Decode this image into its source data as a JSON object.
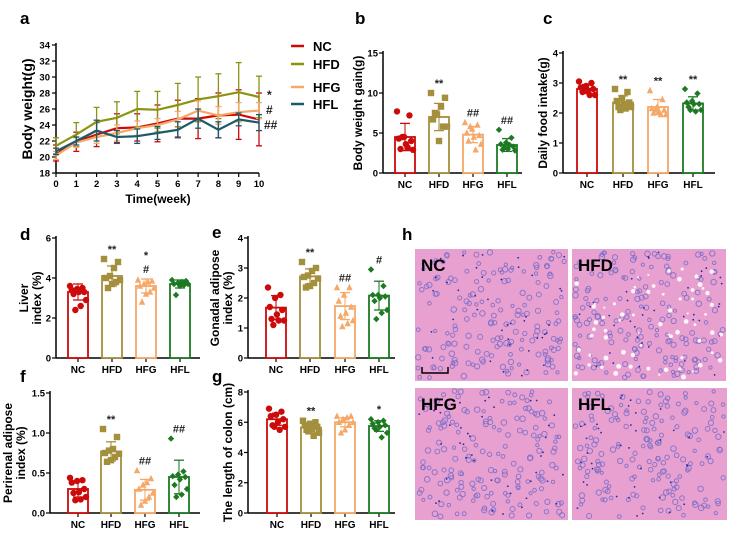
{
  "colors": {
    "NC": "#cc0a0a",
    "HFD_line": "#8a9412",
    "HFD_bar": "#a38f3c",
    "HFG": "#f5a868",
    "HFL_line": "#1c5a6a",
    "HFL_bar": "#1d7a22"
  },
  "panels": {
    "a": "a",
    "b": "b",
    "c": "c",
    "d": "d",
    "e": "e",
    "f": "f",
    "g": "g",
    "h": "h"
  },
  "chart_data": [
    {
      "id": "a",
      "type": "line",
      "xlabel": "Time(week)",
      "ylabel": "Body weight(g)",
      "x": [
        0,
        1,
        2,
        3,
        4,
        5,
        6,
        7,
        8,
        9,
        10
      ],
      "xticks": [
        "0",
        "1",
        "2",
        "3",
        "4",
        "5",
        "6",
        "7",
        "8",
        "9",
        "10"
      ],
      "ylim": [
        18,
        34
      ],
      "yticks": [
        "18",
        "20",
        "22",
        "24",
        "26",
        "28",
        "30",
        "32",
        "34"
      ],
      "legend": "right",
      "series": [
        {
          "name": "NC",
          "color": "#cc0a0a",
          "values": [
            20.5,
            21.9,
            22.8,
            23.6,
            23.7,
            24.2,
            24.8,
            24.8,
            25.2,
            25.3,
            24.7
          ],
          "sd": [
            1.0,
            1.2,
            1.5,
            1.8,
            1.7,
            2.3,
            2.3,
            2.5,
            2.8,
            3.1,
            3.3
          ]
        },
        {
          "name": "HFD",
          "color": "#8a9412",
          "values": [
            21.4,
            22.8,
            24.4,
            24.9,
            26.0,
            25.9,
            26.5,
            27.2,
            27.6,
            28.1,
            27.5
          ],
          "sd": [
            1.0,
            1.5,
            1.8,
            2.0,
            2.2,
            2.3,
            2.7,
            2.8,
            2.8,
            3.7,
            2.6
          ]
        },
        {
          "name": "HFG",
          "color": "#f5a868",
          "values": [
            20.2,
            21.8,
            22.5,
            23.0,
            23.6,
            24.0,
            24.7,
            25.8,
            25.2,
            25.6,
            25.8
          ],
          "sd": [
            0.5,
            0.6,
            0.8,
            1.0,
            0.9,
            0.8,
            1.0,
            1.2,
            1.1,
            1.2,
            1.0
          ]
        },
        {
          "name": "HFL",
          "color": "#1c5a6a",
          "values": [
            20.7,
            22.0,
            23.3,
            22.5,
            22.6,
            23.0,
            23.4,
            24.8,
            23.4,
            24.7,
            24.3
          ],
          "sd": [
            0.4,
            0.5,
            1.3,
            0.8,
            0.9,
            0.8,
            1.0,
            1.2,
            1.0,
            0.8,
            1.0
          ]
        }
      ],
      "annotations": [
        "*",
        "#",
        "##"
      ]
    },
    {
      "id": "b",
      "type": "bar",
      "ylabel": [
        "Body weight gain(g)"
      ],
      "categories": [
        "NC",
        "HFD",
        "HFG",
        "HFL"
      ],
      "ylim": [
        0,
        15
      ],
      "yticks": [
        "0",
        "5",
        "10",
        "15"
      ],
      "means": [
        4.5,
        7.0,
        4.8,
        3.5
      ],
      "sd": [
        1.7,
        1.7,
        1.0,
        0.8
      ],
      "points": [
        [
          7.7,
          7.2,
          4.5,
          4.3,
          4.0,
          3.6,
          3.0,
          2.9,
          3.2,
          4.5
        ],
        [
          10,
          9.4,
          8.3,
          7.3,
          6.7,
          5.8,
          5.8,
          4.0,
          7.5
        ],
        [
          6.3,
          6.0,
          5.5,
          5.0,
          4.7,
          4.5,
          4.0,
          3.6,
          2.9,
          5.8
        ],
        [
          5.4,
          4.4,
          3.8,
          3.6,
          3.3,
          3.0,
          2.9,
          2.8,
          3.5,
          3.2
        ]
      ],
      "annotations": [
        "",
        "**",
        "##",
        "##"
      ]
    },
    {
      "id": "c",
      "type": "bar",
      "ylabel": [
        "Daily food intake(g)"
      ],
      "categories": [
        "NC",
        "HFD",
        "HFG",
        "HFL"
      ],
      "ylim": [
        0,
        4
      ],
      "yticks": [
        "0",
        "1",
        "2",
        "3",
        "4"
      ],
      "means": [
        2.8,
        2.35,
        2.2,
        2.32
      ],
      "sd": [
        0.15,
        0.22,
        0.25,
        0.22
      ],
      "points": [
        [
          3.05,
          3.0,
          2.9,
          2.85,
          2.8,
          2.75,
          2.7,
          2.6,
          2.6,
          2.85
        ],
        [
          2.8,
          2.7,
          2.5,
          2.4,
          2.35,
          2.3,
          2.2,
          2.2,
          2.15,
          2.1
        ],
        [
          2.75,
          2.45,
          2.2,
          2.15,
          2.1,
          2.05,
          2.0,
          1.95,
          1.95,
          2.1
        ],
        [
          2.8,
          2.65,
          2.4,
          2.35,
          2.3,
          2.3,
          2.2,
          2.1,
          2.05,
          2.1
        ]
      ],
      "annotations": [
        "",
        "**",
        "**",
        "**"
      ]
    },
    {
      "id": "d",
      "type": "bar",
      "ylabel": [
        "Liver",
        "index (%)"
      ],
      "categories": [
        "NC",
        "HFD",
        "HFG",
        "HFL"
      ],
      "ylim": [
        0,
        6
      ],
      "yticks": [
        "0",
        "2",
        "4",
        "6"
      ],
      "means": [
        3.3,
        4.1,
        3.6,
        3.7
      ],
      "sd": [
        0.4,
        0.5,
        0.35,
        0.2
      ],
      "points": [
        [
          3.6,
          3.5,
          3.45,
          3.4,
          3.3,
          3.3,
          3.2,
          2.9,
          2.6,
          2.4
        ],
        [
          4.95,
          4.8,
          4.5,
          4.1,
          4.0,
          3.9,
          3.8,
          3.7,
          3.5
        ],
        [
          3.9,
          3.85,
          3.8,
          3.7,
          3.6,
          3.5,
          3.3,
          3.2,
          2.8
        ],
        [
          3.9,
          3.85,
          3.8,
          3.75,
          3.7,
          3.7,
          3.65,
          3.6,
          3.15
        ]
      ],
      "annotations": [
        "",
        "**",
        "*",
        ""
      ],
      "annotations2": [
        "",
        "",
        "#",
        ""
      ]
    },
    {
      "id": "e",
      "type": "bar",
      "ylabel": [
        "Gonadal adipose",
        "index (%)"
      ],
      "categories": [
        "NC",
        "HFD",
        "HFG",
        "HFL"
      ],
      "ylim": [
        0,
        4
      ],
      "yticks": [
        "0",
        "1",
        "2",
        "3",
        "4"
      ],
      "means": [
        1.68,
        2.72,
        1.73,
        2.08
      ],
      "sd": [
        0.4,
        0.25,
        0.45,
        0.48
      ],
      "points": [
        [
          2.35,
          2.1,
          2.0,
          1.7,
          1.6,
          1.45,
          1.3,
          1.25,
          1.25,
          1.1
        ],
        [
          3.2,
          3.0,
          2.9,
          2.75,
          2.7,
          2.65,
          2.5,
          2.4,
          2.35
        ],
        [
          2.35,
          2.35,
          2.1,
          1.9,
          1.7,
          1.5,
          1.4,
          1.25,
          1.15,
          1.05
        ],
        [
          2.95,
          2.4,
          2.1,
          2.1,
          2.05,
          2.0,
          1.9,
          1.6,
          1.5,
          1.3
        ]
      ],
      "annotations": [
        "",
        "**",
        "##",
        "#"
      ]
    },
    {
      "id": "f",
      "type": "bar",
      "ylabel": [
        "Perirenal adipose",
        "index (%)"
      ],
      "categories": [
        "NC",
        "HFD",
        "HFG",
        "HFL"
      ],
      "ylim": [
        0,
        1.5
      ],
      "yticks": [
        "0.0",
        "0.5",
        "1.0",
        "1.5"
      ],
      "means": [
        0.3,
        0.77,
        0.29,
        0.45
      ],
      "sd": [
        0.1,
        0.12,
        0.13,
        0.21
      ],
      "points": [
        [
          0.44,
          0.41,
          0.4,
          0.38,
          0.3,
          0.26,
          0.25,
          0.2,
          0.17,
          0.16
        ],
        [
          1.05,
          0.95,
          0.8,
          0.78,
          0.75,
          0.74,
          0.7,
          0.66,
          0.64
        ],
        [
          0.53,
          0.43,
          0.38,
          0.35,
          0.3,
          0.25,
          0.2,
          0.15,
          0.1
        ],
        [
          0.93,
          0.52,
          0.48,
          0.46,
          0.45,
          0.42,
          0.35,
          0.3,
          0.23,
          0.2
        ]
      ],
      "annotations": [
        "",
        "**",
        "##",
        "##"
      ]
    },
    {
      "id": "g",
      "type": "bar",
      "ylabel": [
        "The length of colon (cm)"
      ],
      "categories": [
        "NC",
        "HFD",
        "HFG",
        "HFL"
      ],
      "ylim": [
        0,
        8
      ],
      "yticks": [
        "0",
        "2",
        "4",
        "6",
        "8"
      ],
      "means": [
        6.2,
        5.65,
        6.0,
        5.75
      ],
      "sd": [
        0.4,
        0.3,
        0.3,
        0.35
      ],
      "points": [
        [
          6.9,
          6.7,
          6.5,
          6.4,
          6.2,
          6.0,
          5.8,
          5.7,
          5.5,
          5.7
        ],
        [
          6.1,
          6.0,
          5.9,
          5.8,
          5.7,
          5.6,
          5.5,
          5.3,
          5.1,
          5.4
        ],
        [
          6.4,
          6.4,
          6.3,
          6.2,
          6.0,
          6.0,
          5.8,
          5.5,
          5.3
        ],
        [
          6.2,
          6.1,
          6.0,
          5.9,
          5.8,
          5.7,
          5.6,
          5.3,
          5.0,
          5.5
        ]
      ],
      "annotations": [
        "",
        "**",
        "",
        "*"
      ]
    }
  ],
  "histology": {
    "labels": [
      "NC",
      "HFD",
      "HFG",
      "HFL"
    ],
    "stain_color": "#e8a0d0",
    "nucleus_color": "#7a6fc8"
  }
}
